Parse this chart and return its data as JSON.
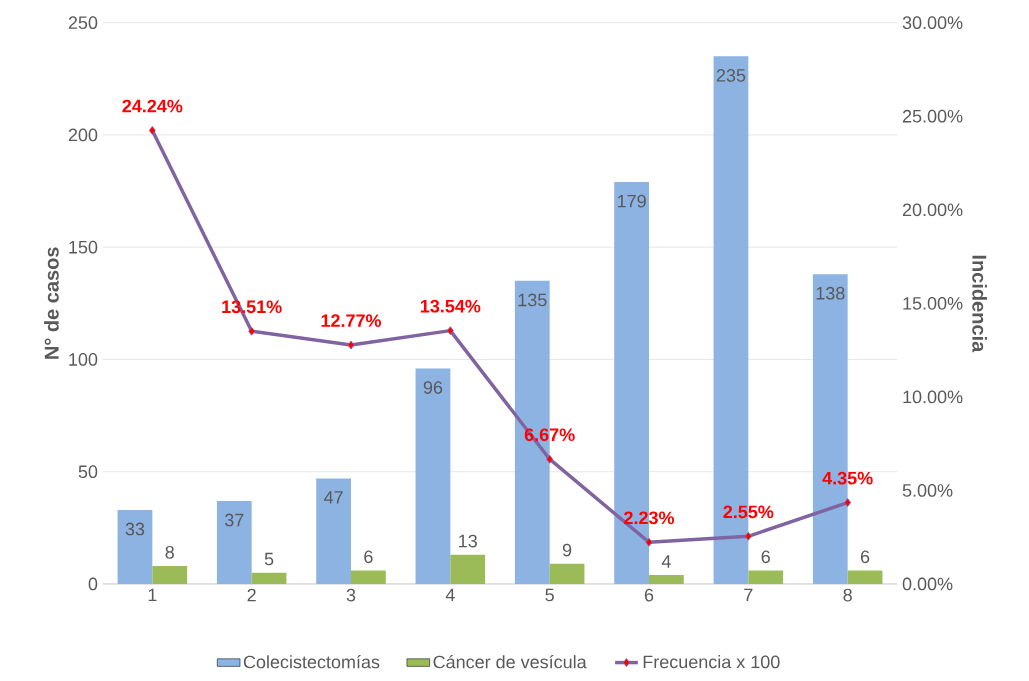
{
  "chart_data": {
    "type": "bar",
    "categories": [
      "1",
      "2",
      "3",
      "4",
      "5",
      "6",
      "7",
      "8"
    ],
    "ylabel": "N° de casos",
    "y2label": "Incidencia",
    "ylim": [
      0,
      250
    ],
    "yticks": [
      0,
      50,
      100,
      150,
      200,
      250
    ],
    "y2lim": [
      0,
      30
    ],
    "y2ticks": [
      {
        "value": 0,
        "label": "0.00%"
      },
      {
        "value": 5,
        "label": "5.00%"
      },
      {
        "value": 10,
        "label": "10.00%"
      },
      {
        "value": 15,
        "label": "15.00%"
      },
      {
        "value": 20,
        "label": "20.00%"
      },
      {
        "value": 25,
        "label": "25.00%"
      },
      {
        "value": 30,
        "label": "30.00%"
      }
    ],
    "grid": "y",
    "legend": "bottom",
    "series": [
      {
        "name": "Colecistectomías",
        "color": "#8db3e2",
        "values": [
          33,
          37,
          47,
          96,
          135,
          179,
          235,
          138
        ],
        "value_labels": [
          "33",
          "37",
          "47",
          "96",
          "135",
          "179",
          "235",
          "138"
        ]
      },
      {
        "name": "Cáncer de vesícula",
        "color": "#9bbb59",
        "values": [
          8,
          5,
          6,
          13,
          9,
          4,
          6,
          6
        ],
        "value_labels": [
          "8",
          "5",
          "6",
          "13",
          "9",
          "4",
          "6",
          "6"
        ]
      },
      {
        "name": "Frecuencia x 100",
        "type": "line",
        "axis": "y2",
        "marker": "diamond",
        "color": "#8064a2",
        "values": [
          24.24,
          13.51,
          12.77,
          13.54,
          6.67,
          2.23,
          2.55,
          4.35
        ],
        "value_labels": [
          "24.24%",
          "13.51%",
          "12.77%",
          "13.54%",
          "6.67%",
          "2.23%",
          "2.55%",
          "4.35%"
        ]
      }
    ]
  }
}
